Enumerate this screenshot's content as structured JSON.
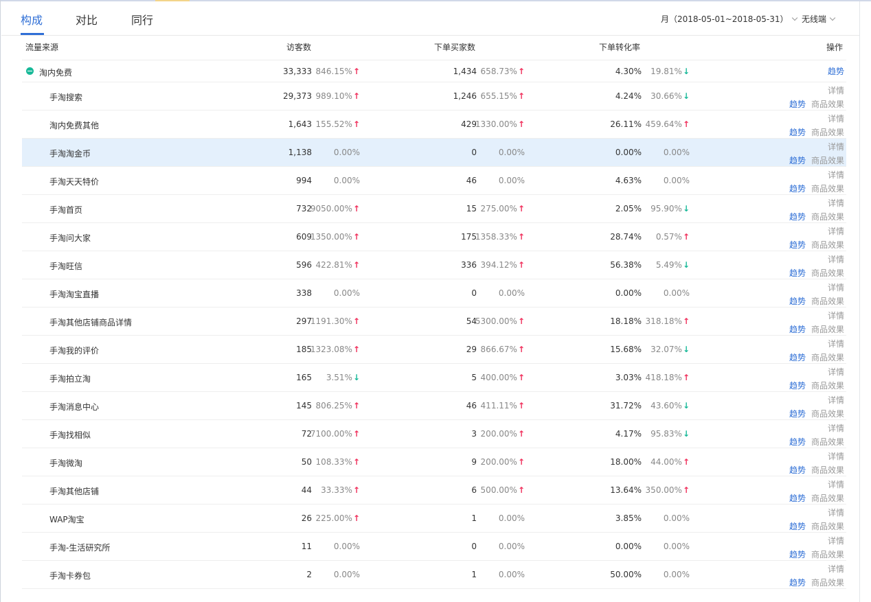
{
  "tabs": [
    "构成",
    "对比",
    "同行"
  ],
  "filters": {
    "period": "月（2018-05-01~2018-05-31）",
    "device": "无线端"
  },
  "columns": {
    "source": "流量来源",
    "visitors": "访客数",
    "buyers": "下单买家数",
    "rate": "下单转化率",
    "ops": "操作"
  },
  "ops_labels": {
    "detail": "详情",
    "trend": "趋势",
    "goods": "商品效果"
  },
  "colors": {
    "accent": "#2f6fd6",
    "up": "#f0305c",
    "down": "#19b999",
    "highlight": "#e4f0fc"
  },
  "parent": {
    "name": "淘内免费",
    "visitors": "33,333",
    "visitors_chg": "846.15%",
    "visitors_dir": "up",
    "buyers": "1,434",
    "buyers_chg": "658.73%",
    "buyers_dir": "up",
    "rate": "4.30%",
    "rate_chg": "19.81%",
    "rate_dir": "down"
  },
  "rows": [
    {
      "name": "手淘搜索",
      "visitors": "29,373",
      "visitors_chg": "989.10%",
      "visitors_dir": "up",
      "buyers": "1,246",
      "buyers_chg": "655.15%",
      "buyers_dir": "up",
      "rate": "4.24%",
      "rate_chg": "30.66%",
      "rate_dir": "down"
    },
    {
      "name": "淘内免费其他",
      "visitors": "1,643",
      "visitors_chg": "155.52%",
      "visitors_dir": "up",
      "buyers": "429",
      "buyers_chg": "1330.00%",
      "buyers_dir": "up",
      "rate": "26.11%",
      "rate_chg": "459.64%",
      "rate_dir": "up"
    },
    {
      "name": "手淘淘金币",
      "visitors": "1,138",
      "visitors_chg": "0.00%",
      "visitors_dir": "",
      "buyers": "0",
      "buyers_chg": "0.00%",
      "buyers_dir": "",
      "rate": "0.00%",
      "rate_chg": "0.00%",
      "rate_dir": "",
      "highlight": true
    },
    {
      "name": "手淘天天特价",
      "visitors": "994",
      "visitors_chg": "0.00%",
      "visitors_dir": "",
      "buyers": "46",
      "buyers_chg": "0.00%",
      "buyers_dir": "",
      "rate": "4.63%",
      "rate_chg": "0.00%",
      "rate_dir": ""
    },
    {
      "name": "手淘首页",
      "visitors": "732",
      "visitors_chg": "9050.00%",
      "visitors_dir": "up",
      "buyers": "15",
      "buyers_chg": "275.00%",
      "buyers_dir": "up",
      "rate": "2.05%",
      "rate_chg": "95.90%",
      "rate_dir": "down"
    },
    {
      "name": "手淘问大家",
      "visitors": "609",
      "visitors_chg": "1350.00%",
      "visitors_dir": "up",
      "buyers": "175",
      "buyers_chg": "1358.33%",
      "buyers_dir": "up",
      "rate": "28.74%",
      "rate_chg": "0.57%",
      "rate_dir": "up"
    },
    {
      "name": "手淘旺信",
      "visitors": "596",
      "visitors_chg": "422.81%",
      "visitors_dir": "up",
      "buyers": "336",
      "buyers_chg": "394.12%",
      "buyers_dir": "up",
      "rate": "56.38%",
      "rate_chg": "5.49%",
      "rate_dir": "down"
    },
    {
      "name": "手淘淘宝直播",
      "visitors": "338",
      "visitors_chg": "0.00%",
      "visitors_dir": "",
      "buyers": "0",
      "buyers_chg": "0.00%",
      "buyers_dir": "",
      "rate": "0.00%",
      "rate_chg": "0.00%",
      "rate_dir": ""
    },
    {
      "name": "手淘其他店铺商品详情",
      "visitors": "297",
      "visitors_chg": "1191.30%",
      "visitors_dir": "up",
      "buyers": "54",
      "buyers_chg": "5300.00%",
      "buyers_dir": "up",
      "rate": "18.18%",
      "rate_chg": "318.18%",
      "rate_dir": "up"
    },
    {
      "name": "手淘我的评价",
      "visitors": "185",
      "visitors_chg": "1323.08%",
      "visitors_dir": "up",
      "buyers": "29",
      "buyers_chg": "866.67%",
      "buyers_dir": "up",
      "rate": "15.68%",
      "rate_chg": "32.07%",
      "rate_dir": "down"
    },
    {
      "name": "手淘拍立淘",
      "visitors": "165",
      "visitors_chg": "3.51%",
      "visitors_dir": "down",
      "buyers": "5",
      "buyers_chg": "400.00%",
      "buyers_dir": "up",
      "rate": "3.03%",
      "rate_chg": "418.18%",
      "rate_dir": "up"
    },
    {
      "name": "手淘消息中心",
      "visitors": "145",
      "visitors_chg": "806.25%",
      "visitors_dir": "up",
      "buyers": "46",
      "buyers_chg": "411.11%",
      "buyers_dir": "up",
      "rate": "31.72%",
      "rate_chg": "43.60%",
      "rate_dir": "down"
    },
    {
      "name": "手淘找相似",
      "visitors": "72",
      "visitors_chg": "7100.00%",
      "visitors_dir": "up",
      "buyers": "3",
      "buyers_chg": "200.00%",
      "buyers_dir": "up",
      "rate": "4.17%",
      "rate_chg": "95.83%",
      "rate_dir": "down"
    },
    {
      "name": "手淘微淘",
      "visitors": "50",
      "visitors_chg": "108.33%",
      "visitors_dir": "up",
      "buyers": "9",
      "buyers_chg": "200.00%",
      "buyers_dir": "up",
      "rate": "18.00%",
      "rate_chg": "44.00%",
      "rate_dir": "up"
    },
    {
      "name": "手淘其他店铺",
      "visitors": "44",
      "visitors_chg": "33.33%",
      "visitors_dir": "up",
      "buyers": "6",
      "buyers_chg": "500.00%",
      "buyers_dir": "up",
      "rate": "13.64%",
      "rate_chg": "350.00%",
      "rate_dir": "up"
    },
    {
      "name": "WAP淘宝",
      "visitors": "26",
      "visitors_chg": "225.00%",
      "visitors_dir": "up",
      "buyers": "1",
      "buyers_chg": "0.00%",
      "buyers_dir": "",
      "rate": "3.85%",
      "rate_chg": "0.00%",
      "rate_dir": ""
    },
    {
      "name": "手淘-生活研究所",
      "visitors": "11",
      "visitors_chg": "0.00%",
      "visitors_dir": "",
      "buyers": "0",
      "buyers_chg": "0.00%",
      "buyers_dir": "",
      "rate": "0.00%",
      "rate_chg": "0.00%",
      "rate_dir": ""
    },
    {
      "name": "手淘卡券包",
      "visitors": "2",
      "visitors_chg": "0.00%",
      "visitors_dir": "",
      "buyers": "1",
      "buyers_chg": "0.00%",
      "buyers_dir": "",
      "rate": "50.00%",
      "rate_chg": "0.00%",
      "rate_dir": ""
    }
  ]
}
